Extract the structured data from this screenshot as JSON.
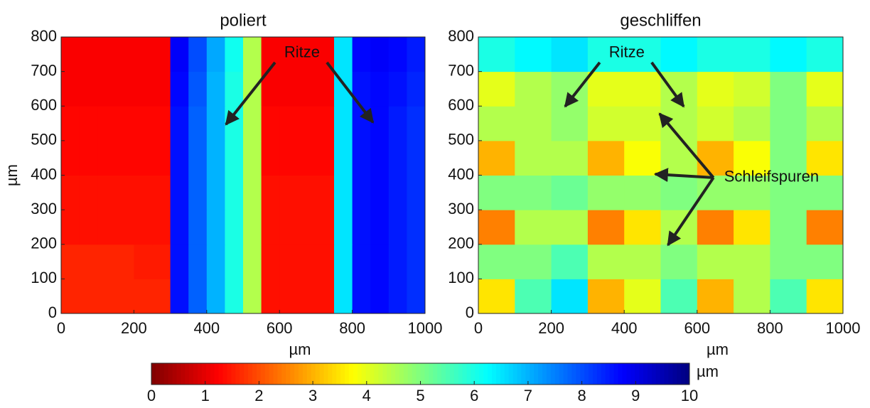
{
  "chart_data": [
    {
      "type": "heatmap",
      "title": "poliert",
      "xlabel": "µm",
      "ylabel": "µm",
      "colormap": "jet_r",
      "xlim": [
        0,
        1000
      ],
      "ylim": [
        0,
        800
      ],
      "xticks": [
        0,
        200,
        400,
        600,
        800,
        1000
      ],
      "yticks": [
        0,
        100,
        200,
        300,
        400,
        500,
        600,
        700,
        800
      ],
      "xbins": [
        0,
        50,
        100,
        150,
        200,
        250,
        300,
        350,
        400,
        450,
        500,
        550,
        600,
        650,
        700,
        750,
        800,
        850,
        900,
        950,
        1000
      ],
      "ybins": [
        0,
        100,
        200,
        300,
        400,
        500,
        600,
        700,
        800
      ],
      "z": [
        [
          1.6,
          1.6,
          1.6,
          1.6,
          1.6,
          1.6,
          8.6,
          7.8,
          7,
          6,
          4.5,
          1.4,
          1.4,
          1.4,
          1.4,
          6.5,
          8.6,
          8.7,
          8.5,
          8.3
        ],
        [
          1.6,
          1.6,
          1.6,
          1.6,
          1.5,
          1.5,
          8.6,
          7.8,
          7,
          6,
          4.5,
          1.4,
          1.4,
          1.4,
          1.4,
          6.5,
          8.6,
          8.7,
          8.5,
          8.3
        ],
        [
          1.4,
          1.4,
          1.4,
          1.4,
          1.4,
          1.4,
          8.6,
          7.8,
          7,
          6,
          4.5,
          1.4,
          1.4,
          1.4,
          1.4,
          6.5,
          8.6,
          8.7,
          8.5,
          8.3
        ],
        [
          1.4,
          1.4,
          1.4,
          1.4,
          1.4,
          1.4,
          8.6,
          7.8,
          7,
          6,
          4.5,
          1.4,
          1.4,
          1.4,
          1.4,
          6.5,
          8.6,
          8.7,
          8.5,
          8.3
        ],
        [
          1.3,
          1.3,
          1.3,
          1.3,
          1.3,
          1.3,
          8.6,
          7.8,
          7,
          6,
          4.5,
          1.3,
          1.3,
          1.3,
          1.3,
          6.5,
          8.6,
          8.7,
          8.5,
          8.3
        ],
        [
          1.3,
          1.3,
          1.3,
          1.3,
          1.3,
          1.3,
          8.6,
          7.8,
          7,
          6,
          4.5,
          1.3,
          1.3,
          1.3,
          1.3,
          6.5,
          8.6,
          8.7,
          8.5,
          8.3
        ],
        [
          1.2,
          1.2,
          1.2,
          1.2,
          1.2,
          1.2,
          8.7,
          7.9,
          7,
          6,
          4.5,
          1.2,
          1.2,
          1.2,
          1.2,
          6.5,
          8.6,
          8.7,
          8.6,
          8.4
        ],
        [
          1.2,
          1.2,
          1.2,
          1.2,
          1.2,
          1.2,
          8.8,
          8,
          7.1,
          6.1,
          4.5,
          1.2,
          1.2,
          1.2,
          1.2,
          6.5,
          8.7,
          8.8,
          8.7,
          8.5
        ]
      ],
      "annotations": [
        {
          "text": "Ritze",
          "x": 662,
          "y": 753,
          "anchor": "middle",
          "arrow_to": [
            [
              453,
              547
            ],
            [
              857,
              553
            ]
          ]
        }
      ]
    },
    {
      "type": "heatmap",
      "title": "geschliffen",
      "xlabel": "µm",
      "colormap": "jet_r",
      "xlim": [
        0,
        1000
      ],
      "ylim": [
        0,
        800
      ],
      "xticks": [
        0,
        200,
        400,
        600,
        800,
        1000
      ],
      "yticks": [
        0,
        100,
        200,
        300,
        400,
        500,
        600,
        700,
        800
      ],
      "xbins": [
        0,
        100,
        200,
        300,
        400,
        500,
        600,
        700,
        800,
        900,
        1000
      ],
      "ybins": [
        0,
        100,
        200,
        300,
        400,
        500,
        600,
        700,
        800
      ],
      "z": [
        [
          3.5,
          5.5,
          6.5,
          3,
          4,
          5.5,
          3,
          4.5,
          5.5,
          3.5
        ],
        [
          5,
          5,
          5.5,
          4.5,
          4.5,
          5,
          4.5,
          4.5,
          5,
          5
        ],
        [
          2.5,
          4.5,
          4.5,
          2.5,
          3.5,
          4.5,
          2.5,
          3.5,
          5,
          2.5
        ],
        [
          5,
          5,
          5.2,
          4.8,
          4.8,
          5,
          4.8,
          4.8,
          5,
          5
        ],
        [
          3,
          4.5,
          4.5,
          3,
          3.8,
          4.5,
          3,
          3.8,
          5,
          3.5
        ],
        [
          4.5,
          4.5,
          4.8,
          4.2,
          4.2,
          4.5,
          4.2,
          4.5,
          5,
          4.5
        ],
        [
          4,
          4.5,
          4.8,
          4,
          4,
          4.5,
          4,
          4.2,
          5,
          4
        ],
        [
          6,
          6.3,
          6.5,
          6,
          6,
          6.3,
          6,
          6,
          6.3,
          6
        ]
      ],
      "annotations": [
        {
          "text": "Ritze",
          "x": 407,
          "y": 753,
          "anchor": "middle",
          "arrow_to": [
            [
              238,
              599
            ],
            [
              563,
              599
            ]
          ]
        },
        {
          "text": "Schleifspuren",
          "x": 674,
          "y": 393,
          "anchor": "start",
          "arrow_to": [
            [
              497,
              578
            ],
            [
              485,
              403
            ],
            [
              520,
              198
            ]
          ]
        }
      ]
    },
    {
      "type": "colorbar",
      "colormap": "jet_r",
      "label": "µm",
      "zlim": [
        0,
        10
      ],
      "zticks": [
        0,
        1,
        2,
        3,
        4,
        5,
        6,
        7,
        8,
        9,
        10
      ]
    }
  ]
}
